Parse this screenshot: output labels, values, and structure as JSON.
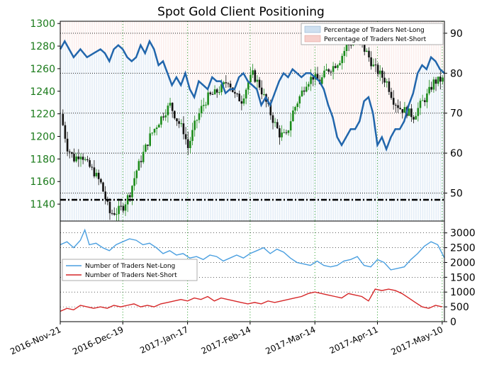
{
  "title": "Spot Gold Client Positioning",
  "colors": {
    "price_tick_color": "#1a7a1a",
    "up_candle": "#1a8a1a",
    "down_candle": "#111111",
    "pct_long_line": "#2166ac",
    "net_long_line": "#4a9fe0",
    "net_short_line": "#d62728",
    "long_fill": "#cfe0f0",
    "short_fill": "#f6d0cc",
    "grid_green": "#2aa02a"
  },
  "x_ticks": [
    "2016-Nov-21",
    "2016-Dec-19",
    "2017-Jan-17",
    "2017-Feb-14",
    "2017-Mar-14",
    "2017-Apr-11",
    "2017-May-10"
  ],
  "top_panel": {
    "legend": [
      "Percentage of Traders Net-Long",
      "Percentage of Traders Net-Short"
    ],
    "price_ticks": [
      "1300",
      "1280",
      "1260",
      "1240",
      "1220",
      "1200",
      "1180",
      "1160",
      "1140"
    ],
    "pct_ticks": [
      "90",
      "80",
      "70",
      "60",
      "50"
    ]
  },
  "bottom_panel": {
    "legend": [
      "Number of Traders Net-Long",
      "Number of Traders Net-Short"
    ],
    "count_ticks": [
      "3000",
      "2500",
      "2000",
      "1500",
      "1000",
      "500",
      "0"
    ]
  },
  "chart_data": [
    {
      "type": "candlestick",
      "title": "Spot Gold Client Positioning",
      "series_name": "Spot Gold",
      "ylim": [
        1125,
        1302
      ],
      "x_range": [
        "2016-Nov-21",
        "2017-May-25"
      ],
      "price_path": [
        [
          0,
          1220
        ],
        [
          3,
          1190
        ],
        [
          6,
          1180
        ],
        [
          9,
          1185
        ],
        [
          12,
          1175
        ],
        [
          15,
          1168
        ],
        [
          18,
          1158
        ],
        [
          20,
          1145
        ],
        [
          22,
          1132
        ],
        [
          25,
          1133
        ],
        [
          28,
          1138
        ],
        [
          31,
          1150
        ],
        [
          34,
          1170
        ],
        [
          37,
          1185
        ],
        [
          40,
          1200
        ],
        [
          43,
          1210
        ],
        [
          46,
          1220
        ],
        [
          49,
          1228
        ],
        [
          52,
          1215
        ],
        [
          55,
          1205
        ],
        [
          57,
          1190
        ],
        [
          60,
          1210
        ],
        [
          63,
          1225
        ],
        [
          66,
          1235
        ],
        [
          69,
          1238
        ],
        [
          72,
          1243
        ],
        [
          75,
          1250
        ],
        [
          78,
          1236
        ],
        [
          81,
          1232
        ],
        [
          84,
          1248
        ],
        [
          86,
          1255
        ],
        [
          89,
          1245
        ],
        [
          92,
          1230
        ],
        [
          95,
          1215
        ],
        [
          98,
          1202
        ],
        [
          101,
          1200
        ],
        [
          104,
          1222
        ],
        [
          107,
          1235
        ],
        [
          110,
          1248
        ],
        [
          113,
          1253
        ],
        [
          116,
          1248
        ],
        [
          119,
          1258
        ],
        [
          122,
          1262
        ],
        [
          125,
          1268
        ],
        [
          128,
          1280
        ],
        [
          131,
          1284
        ],
        [
          134,
          1282
        ],
        [
          137,
          1274
        ],
        [
          140,
          1262
        ],
        [
          143,
          1255
        ],
        [
          146,
          1248
        ],
        [
          149,
          1232
        ],
        [
          152,
          1225
        ],
        [
          155,
          1222
        ],
        [
          158,
          1218
        ],
        [
          161,
          1228
        ],
        [
          164,
          1236
        ],
        [
          167,
          1248
        ],
        [
          170,
          1250
        ]
      ],
      "pct_ylim": [
        43,
        93
      ],
      "pct_net_long": [
        [
          0,
          86
        ],
        [
          2,
          88
        ],
        [
          4,
          86
        ],
        [
          6,
          84
        ],
        [
          9,
          86
        ],
        [
          12,
          84
        ],
        [
          15,
          85
        ],
        [
          18,
          86
        ],
        [
          20,
          85
        ],
        [
          22,
          83
        ],
        [
          24,
          86
        ],
        [
          26,
          87
        ],
        [
          28,
          86
        ],
        [
          30,
          84
        ],
        [
          32,
          83
        ],
        [
          34,
          84
        ],
        [
          36,
          87
        ],
        [
          38,
          85
        ],
        [
          40,
          88
        ],
        [
          42,
          86
        ],
        [
          44,
          82
        ],
        [
          46,
          83
        ],
        [
          48,
          80
        ],
        [
          50,
          77
        ],
        [
          52,
          79
        ],
        [
          54,
          77
        ],
        [
          56,
          80
        ],
        [
          58,
          76
        ],
        [
          60,
          74
        ],
        [
          62,
          78
        ],
        [
          64,
          77
        ],
        [
          66,
          76
        ],
        [
          68,
          79
        ],
        [
          70,
          78
        ],
        [
          72,
          78
        ],
        [
          74,
          75
        ],
        [
          76,
          76
        ],
        [
          78,
          76
        ],
        [
          80,
          79
        ],
        [
          82,
          80
        ],
        [
          84,
          78
        ],
        [
          86,
          77
        ],
        [
          88,
          76
        ],
        [
          90,
          72
        ],
        [
          92,
          74
        ],
        [
          94,
          72
        ],
        [
          96,
          75
        ],
        [
          98,
          78
        ],
        [
          100,
          80
        ],
        [
          102,
          79
        ],
        [
          104,
          81
        ],
        [
          106,
          80
        ],
        [
          108,
          79
        ],
        [
          110,
          80
        ],
        [
          112,
          80
        ],
        [
          114,
          79
        ],
        [
          116,
          78
        ],
        [
          118,
          76
        ],
        [
          120,
          72
        ],
        [
          122,
          69
        ],
        [
          124,
          64
        ],
        [
          126,
          62
        ],
        [
          128,
          64
        ],
        [
          130,
          66
        ],
        [
          132,
          66
        ],
        [
          134,
          68
        ],
        [
          136,
          73
        ],
        [
          138,
          74
        ],
        [
          140,
          70
        ],
        [
          142,
          62
        ],
        [
          144,
          64
        ],
        [
          146,
          61
        ],
        [
          148,
          64
        ],
        [
          150,
          66
        ],
        [
          152,
          66
        ],
        [
          154,
          68
        ],
        [
          156,
          72
        ],
        [
          158,
          75
        ],
        [
          160,
          80
        ],
        [
          162,
          82
        ],
        [
          164,
          81
        ],
        [
          166,
          84
        ],
        [
          168,
          83
        ],
        [
          170,
          81
        ],
        [
          172,
          80
        ]
      ]
    },
    {
      "type": "line",
      "title": "",
      "ylim": [
        0,
        3400
      ],
      "series": [
        {
          "name": "Number of Traders Net-Long",
          "values": [
            [
              0,
              2600
            ],
            [
              3,
              2700
            ],
            [
              6,
              2500
            ],
            [
              9,
              2750
            ],
            [
              11,
              3100
            ],
            [
              13,
              2600
            ],
            [
              16,
              2650
            ],
            [
              19,
              2500
            ],
            [
              22,
              2400
            ],
            [
              25,
              2600
            ],
            [
              28,
              2700
            ],
            [
              31,
              2800
            ],
            [
              34,
              2750
            ],
            [
              37,
              2600
            ],
            [
              40,
              2650
            ],
            [
              43,
              2500
            ],
            [
              46,
              2300
            ],
            [
              49,
              2400
            ],
            [
              52,
              2250
            ],
            [
              55,
              2300
            ],
            [
              58,
              2150
            ],
            [
              61,
              2200
            ],
            [
              64,
              2100
            ],
            [
              67,
              2250
            ],
            [
              70,
              2200
            ],
            [
              73,
              2050
            ],
            [
              76,
              2150
            ],
            [
              79,
              2250
            ],
            [
              82,
              2150
            ],
            [
              85,
              2300
            ],
            [
              88,
              2400
            ],
            [
              91,
              2500
            ],
            [
              94,
              2300
            ],
            [
              97,
              2450
            ],
            [
              100,
              2350
            ],
            [
              103,
              2150
            ],
            [
              106,
              2000
            ],
            [
              109,
              1950
            ],
            [
              112,
              1900
            ],
            [
              115,
              2050
            ],
            [
              118,
              1900
            ],
            [
              121,
              1850
            ],
            [
              124,
              1900
            ],
            [
              127,
              2050
            ],
            [
              130,
              2100
            ],
            [
              133,
              2200
            ],
            [
              136,
              1900
            ],
            [
              139,
              1850
            ],
            [
              142,
              2100
            ],
            [
              145,
              2000
            ],
            [
              148,
              1750
            ],
            [
              151,
              1800
            ],
            [
              154,
              1850
            ],
            [
              157,
              2100
            ],
            [
              160,
              2300
            ],
            [
              163,
              2550
            ],
            [
              166,
              2700
            ],
            [
              169,
              2600
            ],
            [
              172,
              2150
            ]
          ]
        },
        {
          "name": "Number of Traders Net-Short",
          "values": [
            [
              0,
              350
            ],
            [
              3,
              450
            ],
            [
              6,
              400
            ],
            [
              9,
              550
            ],
            [
              12,
              500
            ],
            [
              15,
              450
            ],
            [
              18,
              500
            ],
            [
              21,
              450
            ],
            [
              24,
              550
            ],
            [
              27,
              500
            ],
            [
              30,
              550
            ],
            [
              33,
              600
            ],
            [
              36,
              500
            ],
            [
              39,
              550
            ],
            [
              42,
              500
            ],
            [
              45,
              600
            ],
            [
              48,
              650
            ],
            [
              51,
              700
            ],
            [
              54,
              750
            ],
            [
              57,
              700
            ],
            [
              60,
              800
            ],
            [
              63,
              750
            ],
            [
              66,
              850
            ],
            [
              69,
              700
            ],
            [
              72,
              800
            ],
            [
              75,
              750
            ],
            [
              78,
              700
            ],
            [
              81,
              650
            ],
            [
              84,
              600
            ],
            [
              87,
              650
            ],
            [
              90,
              600
            ],
            [
              93,
              700
            ],
            [
              96,
              650
            ],
            [
              99,
              700
            ],
            [
              102,
              750
            ],
            [
              105,
              800
            ],
            [
              108,
              850
            ],
            [
              111,
              950
            ],
            [
              114,
              1000
            ],
            [
              117,
              950
            ],
            [
              120,
              900
            ],
            [
              123,
              850
            ],
            [
              126,
              800
            ],
            [
              129,
              950
            ],
            [
              132,
              900
            ],
            [
              135,
              850
            ],
            [
              138,
              700
            ],
            [
              141,
              1100
            ],
            [
              144,
              1050
            ],
            [
              147,
              1100
            ],
            [
              150,
              1050
            ],
            [
              153,
              950
            ],
            [
              156,
              800
            ],
            [
              159,
              650
            ],
            [
              162,
              500
            ],
            [
              165,
              450
            ],
            [
              168,
              550
            ],
            [
              171,
              500
            ]
          ]
        }
      ]
    }
  ]
}
